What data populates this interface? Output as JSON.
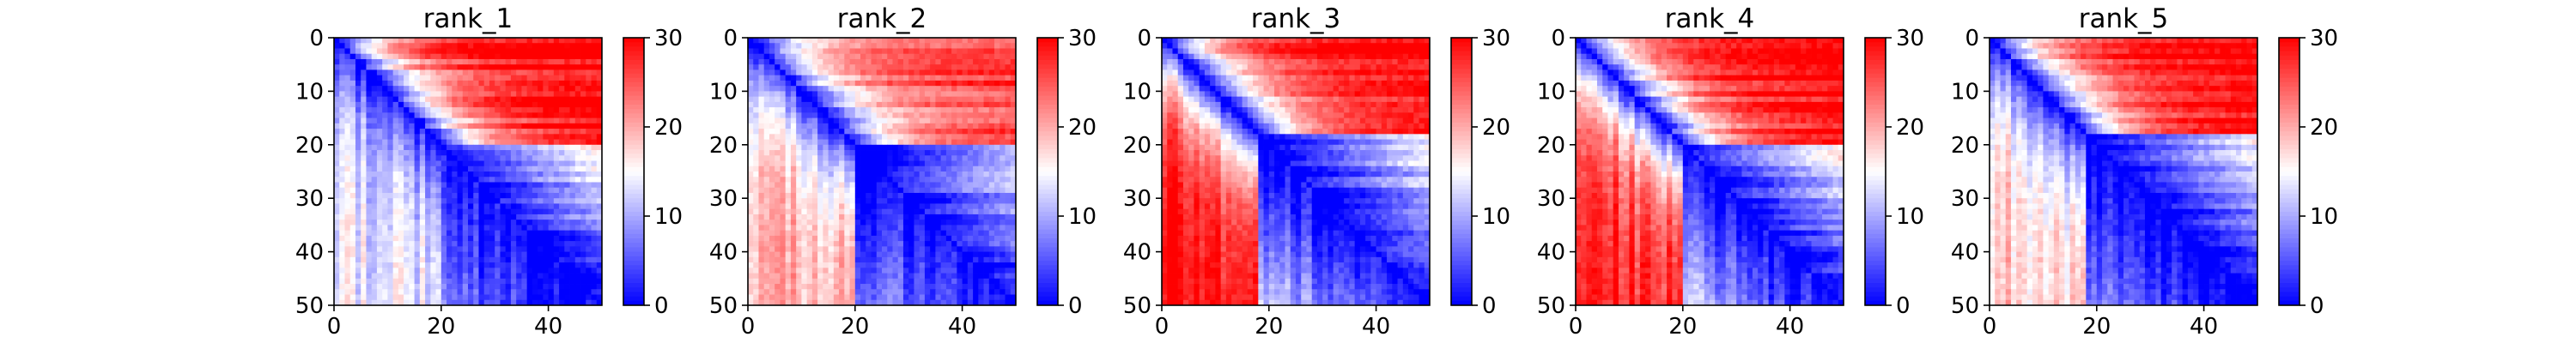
{
  "chart_data": [
    {
      "type": "heatmap",
      "title": "rank_1",
      "matrix_size": 50,
      "x_ticks": [
        "0",
        "20",
        "40"
      ],
      "y_ticks": [
        "0",
        "10",
        "20",
        "30",
        "40",
        "50"
      ],
      "colorbar": {
        "min": 0,
        "max": 30,
        "ticks": [
          "0",
          "10",
          "20",
          "30"
        ],
        "colormap": "bwr"
      },
      "structure": {
        "far_value_upper": 30,
        "far_value_lower": 14,
        "domain_split": 20,
        "diagonal_value": 0,
        "block_color": "red upper-right block, blue lower-right triangle"
      }
    },
    {
      "type": "heatmap",
      "title": "rank_2",
      "matrix_size": 50,
      "x_ticks": [
        "0",
        "20",
        "40"
      ],
      "y_ticks": [
        "0",
        "10",
        "20",
        "30",
        "40",
        "50"
      ],
      "colorbar": {
        "min": 0,
        "max": 30,
        "ticks": [
          "0",
          "10",
          "20",
          "30"
        ],
        "colormap": "bwr"
      },
      "structure": {
        "far_value_upper": 26,
        "far_value_lower": 20,
        "domain_split": 20,
        "diagonal_value": 0,
        "block_color": "red upper-right, pink lower-left"
      }
    },
    {
      "type": "heatmap",
      "title": "rank_3",
      "matrix_size": 50,
      "x_ticks": [
        "0",
        "20",
        "40"
      ],
      "y_ticks": [
        "0",
        "10",
        "20",
        "30",
        "40",
        "50"
      ],
      "colorbar": {
        "min": 0,
        "max": 30,
        "ticks": [
          "0",
          "10",
          "20",
          "30"
        ],
        "colormap": "bwr"
      },
      "structure": {
        "far_value_upper": 30,
        "far_value_lower": 30,
        "domain_split": 18,
        "diagonal_value": 0,
        "block_color": "strong red off-diagonal"
      }
    },
    {
      "type": "heatmap",
      "title": "rank_4",
      "matrix_size": 50,
      "x_ticks": [
        "0",
        "20",
        "40"
      ],
      "y_ticks": [
        "0",
        "10",
        "20",
        "30",
        "40",
        "50"
      ],
      "colorbar": {
        "min": 0,
        "max": 30,
        "ticks": [
          "0",
          "10",
          "20",
          "30"
        ],
        "colormap": "bwr"
      },
      "structure": {
        "far_value_upper": 30,
        "far_value_lower": 28,
        "domain_split": 20,
        "diagonal_value": 0,
        "block_color": "red off-diagonal with pale streaks"
      }
    },
    {
      "type": "heatmap",
      "title": "rank_5",
      "matrix_size": 50,
      "x_ticks": [
        "0",
        "20",
        "40"
      ],
      "y_ticks": [
        "0",
        "10",
        "20",
        "30",
        "40",
        "50"
      ],
      "colorbar": {
        "min": 0,
        "max": 30,
        "ticks": [
          "0",
          "10",
          "20",
          "30"
        ],
        "colormap": "bwr"
      },
      "structure": {
        "far_value_upper": 30,
        "far_value_lower": 18,
        "domain_split": 18,
        "diagonal_value": 0,
        "block_color": "red upper-right, blue lower-right triangle"
      }
    }
  ],
  "colors": {
    "low": "#0000ff",
    "mid": "#ffffff",
    "high": "#ff0000",
    "axis": "#000000"
  }
}
